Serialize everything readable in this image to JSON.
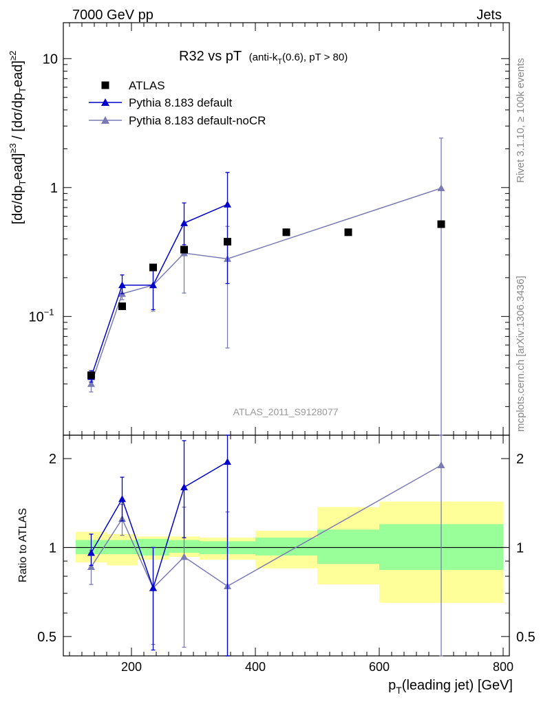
{
  "header": {
    "left": "7000 GeV pp",
    "right": "Jets"
  },
  "side_text": {
    "rivet": "Rivet 3.1.10, ≥ 100k events",
    "source": "mcplots.cern.ch [arXiv:1306.3436]"
  },
  "colors": {
    "data": "#000000",
    "mc1": "#0000cc",
    "mc2": "#7a7ab5",
    "band_inner": "#99ff99",
    "band_outer": "#ffff99"
  },
  "chart_data": {
    "type": "scatter",
    "title_main": "R32 vs pT",
    "title_detail": "(anti-k",
    "title_sub": "T",
    "title_tail": "(0.6), pT > 80)",
    "analysis": "ATLAS_2011_S9128077",
    "ylabel": "[dσ/dp_T^lead]^≥3 / [dσ/dp_T^lead]^≥2",
    "ratio_ylabel": "Ratio to ATLAS",
    "xlabel": "p_T(leading jet) [GeV]",
    "xlim": [
      90,
      810
    ],
    "ylim": [
      0.012,
      19
    ],
    "ratio_ylim": [
      0.43,
      2.4
    ],
    "x_ticks": [
      200,
      400,
      600,
      800
    ],
    "x_tick_labels": [
      "200",
      "400",
      "600",
      "800"
    ],
    "y_ticks": [
      {
        "value": 10,
        "base": "10",
        "exp": ""
      },
      {
        "value": 1,
        "base": "1",
        "exp": ""
      },
      {
        "value": 0.1,
        "base": "10",
        "exp": "−1"
      }
    ],
    "ratio_ticks": [
      {
        "value": 2,
        "label": "2"
      },
      {
        "value": 1,
        "label": "1"
      },
      {
        "value": 0.5,
        "label": "0.5"
      }
    ],
    "legend": [
      "ATLAS",
      "Pythia 8.183 default",
      "Pythia 8.183 default-noCR"
    ],
    "bins": [
      {
        "lo": 110,
        "hi": 160
      },
      {
        "lo": 160,
        "hi": 210
      },
      {
        "lo": 210,
        "hi": 260
      },
      {
        "lo": 260,
        "hi": 310
      },
      {
        "lo": 310,
        "hi": 400
      },
      {
        "lo": 400,
        "hi": 500
      },
      {
        "lo": 500,
        "hi": 600
      },
      {
        "lo": 600,
        "hi": 800
      }
    ],
    "series": [
      {
        "name": "ATLAS",
        "x": [
          135,
          185,
          235,
          285,
          355,
          450,
          550,
          700
        ],
        "y": [
          0.035,
          0.12,
          0.24,
          0.33,
          0.38,
          0.45,
          0.45,
          0.52
        ],
        "band_inner_lo": [
          0.95,
          0.95,
          0.94,
          0.96,
          0.95,
          0.94,
          0.88,
          0.84
        ],
        "band_inner_hi": [
          1.06,
          1.06,
          1.07,
          1.06,
          1.05,
          1.08,
          1.15,
          1.2
        ],
        "band_outer_lo": [
          0.89,
          0.87,
          0.91,
          0.93,
          0.91,
          0.85,
          0.75,
          0.65
        ],
        "band_outer_hi": [
          1.13,
          1.11,
          1.09,
          1.09,
          1.08,
          1.14,
          1.37,
          1.43
        ]
      },
      {
        "name": "Pythia 8.183 default",
        "x": [
          135,
          185,
          235,
          285,
          355
        ],
        "y": [
          0.034,
          0.175,
          0.175,
          0.53,
          0.74
        ],
        "err_lo": [
          0.031,
          0.15,
          0.113,
          0.36,
          0.18
        ],
        "err_hi": [
          0.038,
          0.21,
          0.24,
          0.76,
          1.31
        ],
        "ratio": [
          0.96,
          1.46,
          0.73,
          1.6,
          1.95
        ],
        "ratio_lo": [
          0.87,
          1.23,
          0.45,
          1.08,
          0.43
        ],
        "ratio_hi": [
          1.11,
          1.73,
          1.0,
          2.3,
          2.4
        ]
      },
      {
        "name": "Pythia 8.183 default-noCR",
        "x": [
          135,
          185,
          235,
          285,
          355,
          700
        ],
        "y": [
          0.03,
          0.15,
          0.175,
          0.31,
          0.28,
          0.99
        ],
        "err_lo": [
          0.026,
          0.135,
          0.11,
          0.152,
          0.057,
          0.001
        ],
        "err_hi": [
          0.034,
          0.175,
          0.24,
          0.52,
          0.5,
          2.42
        ],
        "ratio": [
          0.86,
          1.25,
          0.73,
          0.93,
          0.74,
          1.9
        ],
        "ratio_lo": [
          0.75,
          1.1,
          0.47,
          0.46,
          0.15,
          0.01
        ],
        "ratio_hi": [
          0.98,
          1.4,
          1.0,
          1.37,
          1.32,
          2.4
        ]
      }
    ]
  }
}
